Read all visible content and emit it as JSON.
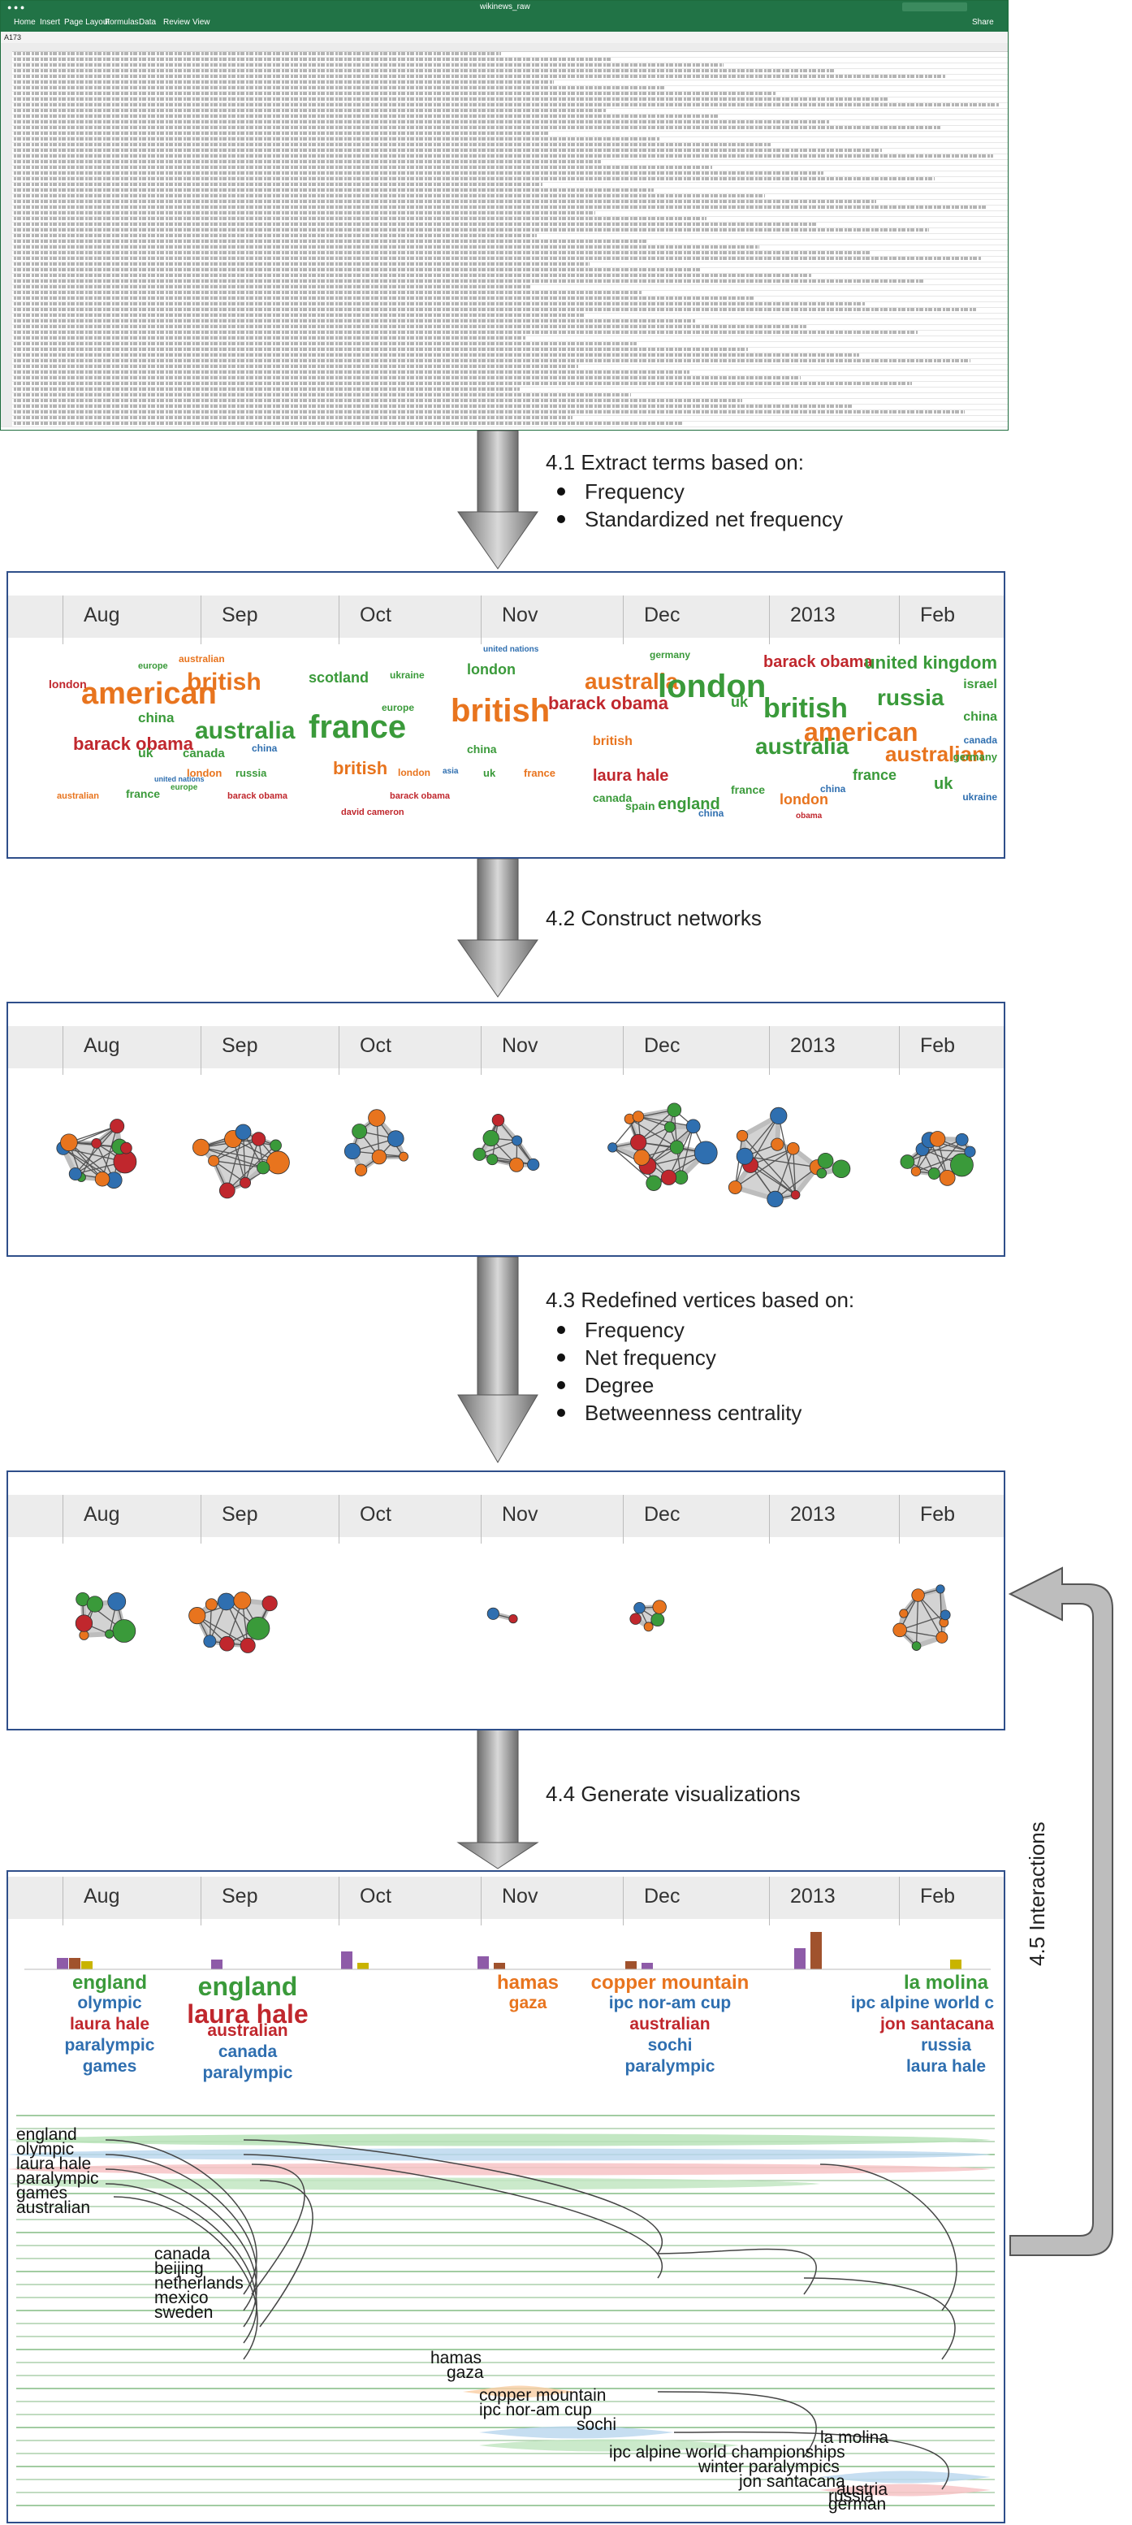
{
  "spreadsheet": {
    "filename": "wikinews_raw",
    "tabs": [
      "Home",
      "Insert",
      "Page Layout",
      "Formulas",
      "Data",
      "Review",
      "View"
    ],
    "share_label": "Share",
    "cell_ref": "A173"
  },
  "steps": {
    "s41": {
      "title": "4.1 Extract terms based on:",
      "bullets": [
        "Frequency",
        "Standardized net frequency"
      ]
    },
    "s42": {
      "title": "4.2 Construct networks"
    },
    "s43": {
      "title": "4.3 Redefined vertices based on:",
      "bullets": [
        "Frequency",
        "Net frequency",
        "Degree",
        "Betweenness centrality"
      ]
    },
    "s44": {
      "title": "4.4 Generate visualizations"
    },
    "s45": {
      "title": "4.5 Interactions"
    }
  },
  "months": [
    "Aug",
    "Sep",
    "Oct",
    "Nov",
    "Dec",
    "2013",
    "Feb"
  ],
  "colors": {
    "red": "#c0272d",
    "orange": "#e8741e",
    "green": "#3a9a3a",
    "blue": "#2f6fb0",
    "panel_border": "#2f4f8a"
  },
  "clouds": [
    {
      "words": [
        {
          "t": "american",
          "c": "orange",
          "s": 38
        },
        {
          "t": "barack obama",
          "c": "red",
          "s": 22
        },
        {
          "t": "london",
          "c": "red",
          "s": 14
        },
        {
          "t": "china",
          "c": "green",
          "s": 17
        },
        {
          "t": "uk",
          "c": "green",
          "s": 16
        },
        {
          "t": "europe",
          "c": "green",
          "s": 11
        },
        {
          "t": "france",
          "c": "green",
          "s": 14
        },
        {
          "t": "united nations",
          "c": "blue",
          "s": 9
        },
        {
          "t": "australian",
          "c": "orange",
          "s": 11
        }
      ]
    },
    {
      "words": [
        {
          "t": "british",
          "c": "orange",
          "s": 30
        },
        {
          "t": "australia",
          "c": "green",
          "s": 30
        },
        {
          "t": "australian",
          "c": "orange",
          "s": 12
        },
        {
          "t": "canada",
          "c": "green",
          "s": 15
        },
        {
          "t": "london",
          "c": "orange",
          "s": 13
        },
        {
          "t": "russia",
          "c": "green",
          "s": 13
        },
        {
          "t": "barack obama",
          "c": "red",
          "s": 11
        },
        {
          "t": "europe",
          "c": "green",
          "s": 10
        },
        {
          "t": "china",
          "c": "blue",
          "s": 12
        }
      ]
    },
    {
      "words": [
        {
          "t": "france",
          "c": "green",
          "s": 40
        },
        {
          "t": "british",
          "c": "orange",
          "s": 22
        },
        {
          "t": "scotland",
          "c": "green",
          "s": 18
        },
        {
          "t": "ukraine",
          "c": "green",
          "s": 12
        },
        {
          "t": "london",
          "c": "orange",
          "s": 12
        },
        {
          "t": "europe",
          "c": "green",
          "s": 12
        },
        {
          "t": "david cameron",
          "c": "red",
          "s": 11
        },
        {
          "t": "barack obama",
          "c": "red",
          "s": 11
        }
      ]
    },
    {
      "words": [
        {
          "t": "british",
          "c": "orange",
          "s": 40
        },
        {
          "t": "london",
          "c": "green",
          "s": 18
        },
        {
          "t": "barack obama",
          "c": "red",
          "s": 22
        },
        {
          "t": "united nations",
          "c": "blue",
          "s": 10
        },
        {
          "t": "china",
          "c": "green",
          "s": 14
        },
        {
          "t": "uk",
          "c": "green",
          "s": 13
        },
        {
          "t": "france",
          "c": "orange",
          "s": 13
        },
        {
          "t": "asia",
          "c": "blue",
          "s": 10
        }
      ]
    },
    {
      "words": [
        {
          "t": "australia",
          "c": "orange",
          "s": 28
        },
        {
          "t": "london",
          "c": "green",
          "s": 40
        },
        {
          "t": "laura hale",
          "c": "red",
          "s": 20
        },
        {
          "t": "british",
          "c": "orange",
          "s": 16
        },
        {
          "t": "canada",
          "c": "green",
          "s": 14
        },
        {
          "t": "spain",
          "c": "green",
          "s": 14
        },
        {
          "t": "england",
          "c": "green",
          "s": 20
        },
        {
          "t": "germany",
          "c": "green",
          "s": 12
        },
        {
          "t": "china",
          "c": "blue",
          "s": 12
        }
      ]
    },
    {
      "words": [
        {
          "t": "barack obama",
          "c": "red",
          "s": 20
        },
        {
          "t": "british",
          "c": "green",
          "s": 34
        },
        {
          "t": "american",
          "c": "orange",
          "s": 32
        },
        {
          "t": "australia",
          "c": "green",
          "s": 28
        },
        {
          "t": "london",
          "c": "orange",
          "s": 18
        },
        {
          "t": "uk",
          "c": "green",
          "s": 18
        },
        {
          "t": "france",
          "c": "green",
          "s": 14
        },
        {
          "t": "china",
          "c": "blue",
          "s": 12
        },
        {
          "t": "obama",
          "c": "red",
          "s": 10
        }
      ]
    },
    {
      "words": [
        {
          "t": "united kingdom",
          "c": "green",
          "s": 22
        },
        {
          "t": "russia",
          "c": "green",
          "s": 28
        },
        {
          "t": "israel",
          "c": "green",
          "s": 16
        },
        {
          "t": "australian",
          "c": "orange",
          "s": 26
        },
        {
          "t": "china",
          "c": "green",
          "s": 16
        },
        {
          "t": "france",
          "c": "green",
          "s": 18
        },
        {
          "t": "uk",
          "c": "green",
          "s": 20
        },
        {
          "t": "germany",
          "c": "green",
          "s": 13
        },
        {
          "t": "canada",
          "c": "blue",
          "s": 12
        },
        {
          "t": "ukraine",
          "c": "blue",
          "s": 12
        }
      ]
    }
  ],
  "viz": {
    "month_terms": [
      [
        "england",
        "olympic",
        "laura hale",
        "paralympic",
        "games"
      ],
      [
        "england",
        "laura hale",
        "australian",
        "canada",
        "paralympic"
      ],
      [],
      [
        "hamas",
        "gaza"
      ],
      [
        "copper mountain",
        "ipc nor-am cup",
        "australian",
        "sochi",
        "paralympic"
      ],
      [],
      [
        "la molina",
        "ipc alpine world c",
        "jon santacana",
        "russia",
        "laura hale"
      ]
    ],
    "stream_labels": [
      "england",
      "olympic",
      "laura hale",
      "paralympic",
      "games",
      "australian",
      "canada",
      "beijing",
      "netherlands",
      "mexico",
      "sweden",
      "hamas",
      "gaza",
      "copper mountain",
      "ipc nor-am cup",
      "sochi",
      "la molina",
      "ipc alpine world championships",
      "winter paralympics",
      "jon santacana",
      "russia",
      "austria",
      "german"
    ]
  }
}
